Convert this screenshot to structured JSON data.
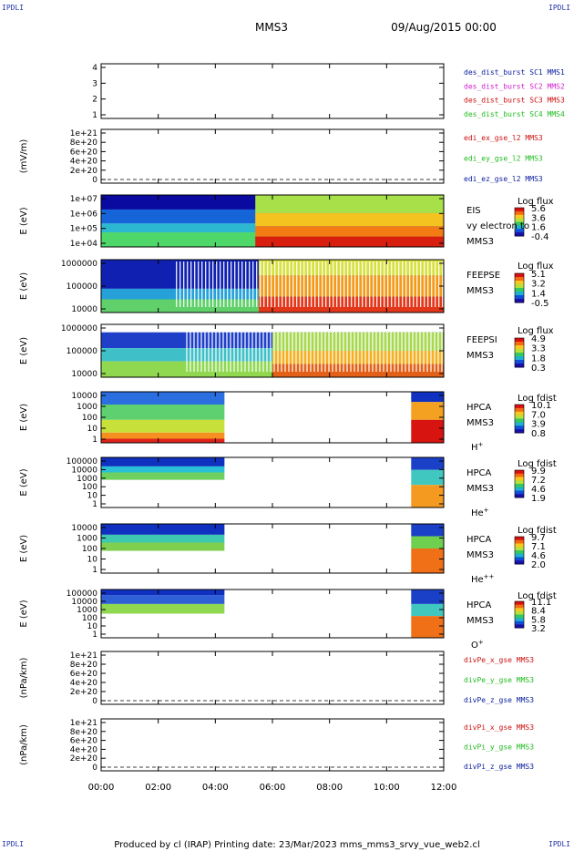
{
  "header": {
    "spacecraft": "MMS3",
    "datetime": "09/Aug/2015 00:00",
    "corner_tag": "IPDLI"
  },
  "footer": {
    "text": "Produced by cl (IRAP)   Printing date: 23/Mar/2023   mms_mms3_srvy_vue_web2.cl"
  },
  "time_axis": {
    "ticks": [
      "00:00",
      "02:00",
      "04:00",
      "06:00",
      "08:00",
      "10:00",
      "12:00"
    ]
  },
  "colors": {
    "blue": "#0a1e9c",
    "magenta": "#cc22cc",
    "red": "#cc1111",
    "green": "#22bb22"
  },
  "chart_data": [
    {
      "id": "panel1",
      "type": "line",
      "ylabel": "",
      "yticks": [
        "1",
        "2",
        "3",
        "4"
      ],
      "dashed_zero": false,
      "legend": [
        {
          "text": "des_dist_burst SC1 MMS1",
          "color": "#0a1e9c"
        },
        {
          "text": "des_dist_burst SC2 MMS2",
          "color": "#cc22cc"
        },
        {
          "text": "des_dist_burst SC3 MMS3",
          "color": "#cc1111"
        },
        {
          "text": "des_dist_burst SC4 MMS4",
          "color": "#22bb22"
        }
      ]
    },
    {
      "id": "panel2",
      "type": "line",
      "ylabel": "(mV/m)",
      "yticks": [
        "0",
        "2e+20",
        "4e+20",
        "6e+20",
        "8e+20",
        "1e+21"
      ],
      "dashed_zero": true,
      "legend": [
        {
          "text": "edi_ex_gse_l2 MMS3",
          "color": "#cc1111"
        },
        {
          "text": "edi_ey_gse_l2 MMS3",
          "color": "#22bb22"
        },
        {
          "text": "edi_ez_gse_l2 MMS3",
          "color": "#0a1e9c"
        }
      ]
    },
    {
      "id": "panel3",
      "type": "heatmap",
      "ylabel": "E (eV)",
      "yticks": [
        "1e+04",
        "1e+05",
        "1e+06",
        "1e+07"
      ],
      "side_labels": [
        "EIS",
        "vy electron to",
        "MMS3"
      ],
      "colorbar": {
        "title": "Log flux",
        "ticks": [
          "5.6",
          "3.6",
          "1.6",
          "-0.4"
        ]
      }
    },
    {
      "id": "panel4",
      "type": "heatmap",
      "ylabel": "E (eV)",
      "yticks": [
        "10000",
        "100000",
        "1000000"
      ],
      "side_labels": [
        "FEEPSE",
        "MMS3"
      ],
      "colorbar": {
        "title": "Log flux",
        "ticks": [
          "5.1",
          "3.2",
          "1.4",
          "-0.5"
        ]
      }
    },
    {
      "id": "panel5",
      "type": "heatmap",
      "ylabel": "E (eV)",
      "yticks": [
        "10000",
        "100000",
        "1000000"
      ],
      "side_labels": [
        "FEEPSI",
        "MMS3"
      ],
      "colorbar": {
        "title": "Log flux",
        "ticks": [
          "4.9",
          "3.3",
          "1.8",
          "0.3"
        ]
      }
    },
    {
      "id": "panel6",
      "type": "heatmap",
      "ylabel": "E (eV)",
      "yticks": [
        "1",
        "10",
        "100",
        "1000",
        "10000"
      ],
      "side_labels": [
        "HPCA",
        "MMS3"
      ],
      "species": {
        "base": "H",
        "sup": "+"
      },
      "colorbar": {
        "title": "Log fdist",
        "ticks": [
          "10.1",
          "7.0",
          "3.9",
          "0.8"
        ]
      }
    },
    {
      "id": "panel7",
      "type": "heatmap",
      "ylabel": "E (eV)",
      "yticks": [
        "1",
        "10",
        "100",
        "1000",
        "10000",
        "100000"
      ],
      "side_labels": [
        "HPCA",
        "MMS3"
      ],
      "species": {
        "base": "He",
        "sup": "+"
      },
      "colorbar": {
        "title": "Log fdist",
        "ticks": [
          "9.9",
          "7.2",
          "4.6",
          "1.9"
        ]
      }
    },
    {
      "id": "panel8",
      "type": "heatmap",
      "ylabel": "E (eV)",
      "yticks": [
        "1",
        "10",
        "100",
        "1000",
        "10000"
      ],
      "side_labels": [
        "HPCA",
        "MMS3"
      ],
      "species": {
        "base": "He",
        "sup": "++"
      },
      "colorbar": {
        "title": "Log fdist",
        "ticks": [
          "9.7",
          "7.1",
          "4.6",
          "2.0"
        ]
      }
    },
    {
      "id": "panel9",
      "type": "heatmap",
      "ylabel": "E (eV)",
      "yticks": [
        "1",
        "10",
        "100",
        "1000",
        "10000",
        "100000"
      ],
      "side_labels": [
        "HPCA",
        "MMS3"
      ],
      "species": {
        "base": "O",
        "sup": "+"
      },
      "colorbar": {
        "title": "Log fdist",
        "ticks": [
          "11.1",
          "8.4",
          "5.8",
          "3.2"
        ]
      }
    },
    {
      "id": "panel10",
      "type": "line",
      "ylabel": "(nPa/km)",
      "yticks": [
        "0",
        "2e+20",
        "4e+20",
        "6e+20",
        "8e+20",
        "1e+21"
      ],
      "dashed_zero": true,
      "legend": [
        {
          "text": "divPe_x_gse MMS3",
          "color": "#cc1111"
        },
        {
          "text": "divPe_y_gse MMS3",
          "color": "#22bb22"
        },
        {
          "text": "divPe_z_gse MMS3",
          "color": "#0a1e9c"
        }
      ]
    },
    {
      "id": "panel11",
      "type": "line",
      "ylabel": "(nPa/km)",
      "yticks": [
        "0",
        "2e+20",
        "4e+20",
        "6e+20",
        "8e+20",
        "1e+21"
      ],
      "dashed_zero": true,
      "legend": [
        {
          "text": "divPi_x_gse MMS3",
          "color": "#cc1111"
        },
        {
          "text": "divPi_y_gse MMS3",
          "color": "#22bb22"
        },
        {
          "text": "divPi_z_gse MMS3",
          "color": "#0a1e9c"
        }
      ]
    }
  ]
}
